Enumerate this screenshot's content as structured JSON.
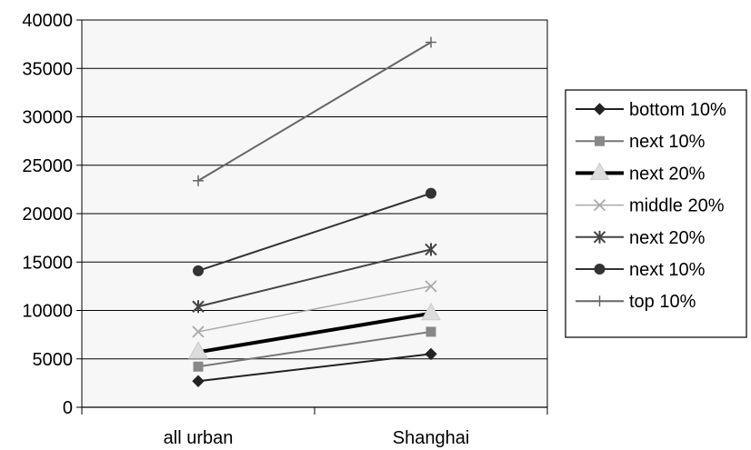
{
  "chart_data": {
    "type": "line",
    "categories": [
      "all urban",
      "Shanghai"
    ],
    "ylim": [
      0,
      40000
    ],
    "yticks": [
      0,
      5000,
      10000,
      15000,
      20000,
      25000,
      30000,
      35000,
      40000
    ],
    "grid": true,
    "legend_position": "right",
    "series": [
      {
        "name": "bottom 10%",
        "values": [
          2700,
          5500
        ],
        "color": "#222222",
        "marker": "diamond",
        "width": 2
      },
      {
        "name": "next 10%",
        "values": [
          4200,
          7800
        ],
        "color": "#777777",
        "marker": "square",
        "width": 2
      },
      {
        "name": "next 20%",
        "values": [
          5700,
          9700
        ],
        "color": "#000000",
        "marker": "triangle",
        "marker_color": "#dddddd",
        "width": 4
      },
      {
        "name": "middle 20%",
        "values": [
          7800,
          12500
        ],
        "color": "#aaaaaa",
        "marker": "x",
        "width": 1.5
      },
      {
        "name": "next 20%",
        "values": [
          10400,
          16300
        ],
        "color": "#444444",
        "marker": "star",
        "width": 2
      },
      {
        "name": "next 10%",
        "values": [
          14100,
          22100
        ],
        "color": "#333333",
        "marker": "circle",
        "width": 2
      },
      {
        "name": "top 10%",
        "values": [
          23400,
          37700
        ],
        "color": "#666666",
        "marker": "plus",
        "width": 2
      }
    ]
  }
}
